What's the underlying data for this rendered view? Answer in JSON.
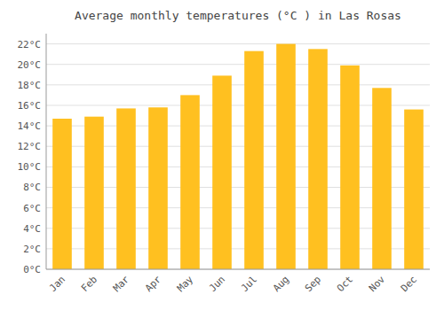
{
  "chart_data": {
    "type": "bar",
    "title": "Average monthly temperatures (°C ) in Las Rosas",
    "categories": [
      "Jan",
      "Feb",
      "Mar",
      "Apr",
      "May",
      "Jun",
      "Jul",
      "Aug",
      "Sep",
      "Oct",
      "Nov",
      "Dec"
    ],
    "values": [
      14.7,
      14.9,
      15.7,
      15.8,
      17.0,
      18.9,
      21.3,
      22.0,
      21.5,
      19.9,
      17.7,
      15.6
    ],
    "color": "#FFC020",
    "ylim": [
      0,
      23
    ],
    "yticks": [
      {
        "value": 0,
        "label": "0°C"
      },
      {
        "value": 2,
        "label": "2°C"
      },
      {
        "value": 4,
        "label": "4°C"
      },
      {
        "value": 6,
        "label": "6°C"
      },
      {
        "value": 8,
        "label": "8°C"
      },
      {
        "value": 10,
        "label": "10°C"
      },
      {
        "value": 12,
        "label": "12°C"
      },
      {
        "value": 14,
        "label": "14°C"
      },
      {
        "value": 16,
        "label": "16°C"
      },
      {
        "value": 18,
        "label": "18°C"
      },
      {
        "value": 20,
        "label": "20°C"
      },
      {
        "value": 22,
        "label": "22°C"
      }
    ],
    "grid": true
  }
}
